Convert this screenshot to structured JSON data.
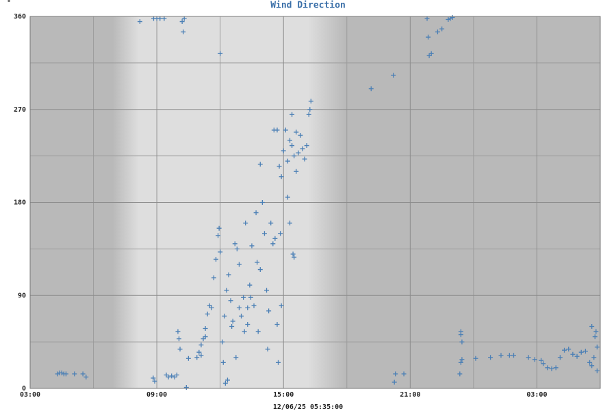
{
  "chart_data": {
    "type": "scatter",
    "title": "Wind Direction",
    "y_unit": "°",
    "x_label": "12/06/25 05:35:00",
    "color": "#4a7fb5",
    "marker": "+",
    "grid": true,
    "xlim": [
      3,
      30
    ],
    "ylim": [
      0,
      360
    ],
    "xticks": [
      {
        "value": 3,
        "label": "03:00"
      },
      {
        "value": 9,
        "label": "09:00"
      },
      {
        "value": 15,
        "label": "15:00"
      },
      {
        "value": 21,
        "label": "21:00"
      },
      {
        "value": 27,
        "label": "03:00"
      }
    ],
    "x_minor_ticks": [
      6,
      12,
      18,
      24
    ],
    "yticks": [
      0,
      90,
      180,
      270,
      360
    ],
    "y_minor_ticks": [
      45,
      135,
      225,
      315
    ],
    "series": [
      {
        "name": "Wind Direction",
        "color": "#4a7fb5",
        "x": [
          4.3,
          4.4,
          4.5,
          4.6,
          4.7,
          5.1,
          5.5,
          5.65,
          8.2,
          8.85,
          9.0,
          9.15,
          9.35,
          8.83,
          8.9,
          9.45,
          9.55,
          9.7,
          9.85,
          9.95,
          10.0,
          10.05,
          10.1,
          10.2,
          10.25,
          10.3,
          10.4,
          10.5,
          10.9,
          11.0,
          11.1,
          11.2,
          11.3,
          12.0,
          11.1,
          11.3,
          11.4,
          11.5,
          11.6,
          11.7,
          11.8,
          11.9,
          11.95,
          12.0,
          12.1,
          12.15,
          12.2,
          12.3,
          12.4,
          12.5,
          12.6,
          12.7,
          12.8,
          12.9,
          13.0,
          13.1,
          13.2,
          13.3,
          13.4,
          13.5,
          13.6,
          13.7,
          13.8,
          13.9,
          14.0,
          14.1,
          14.2,
          14.3,
          14.4,
          14.5,
          14.6,
          14.7,
          14.8,
          14.85,
          14.9,
          15.0,
          15.1,
          15.2,
          15.3,
          15.4,
          15.5,
          15.6,
          15.7,
          15.8,
          15.9,
          16.0,
          16.1,
          16.2,
          12.35,
          12.25,
          13.15,
          13.45,
          13.75,
          14.25,
          14.75,
          14.9,
          15.2,
          15.3,
          13.9,
          14.55,
          14.7,
          15.6,
          15.4,
          12.9,
          13.3,
          12.55,
          12.75,
          15.45,
          15.5,
          16.3,
          16.25,
          19.15,
          20.2,
          20.3,
          20.7,
          20.25,
          21.8,
          21.85,
          21.9,
          22.0,
          22.3,
          22.5,
          22.8,
          22.9,
          23.0,
          23.4,
          23.4,
          23.45,
          23.4,
          23.45,
          23.35,
          24.1,
          24.8,
          25.3,
          25.7,
          25.9,
          26.6,
          26.9,
          27.2,
          27.3,
          27.5,
          27.7,
          27.9,
          28.1,
          28.3,
          28.5,
          28.7,
          28.9,
          29.1,
          29.3,
          29.5,
          29.6,
          29.7,
          29.75,
          29.8,
          29.85,
          29.85,
          29.6
        ],
        "values": [
          14,
          15,
          15,
          14,
          14,
          14,
          14,
          11,
          355,
          358,
          358,
          358,
          358,
          10,
          7,
          13,
          11,
          12,
          11,
          13,
          55,
          48,
          38,
          355,
          345,
          358,
          1,
          29,
          30,
          35,
          32,
          48,
          50,
          324,
          42,
          58,
          72,
          80,
          78,
          107,
          125,
          148,
          155,
          132,
          45,
          25,
          70,
          95,
          110,
          85,
          65,
          140,
          135,
          120,
          70,
          88,
          160,
          62,
          100,
          138,
          80,
          170,
          55,
          115,
          180,
          150,
          95,
          75,
          160,
          140,
          145,
          62,
          215,
          150,
          205,
          230,
          250,
          220,
          240,
          235,
          225,
          210,
          228,
          245,
          232,
          222,
          235,
          265,
          8,
          5,
          55,
          88,
          122,
          38,
          25,
          80,
          185,
          160,
          217,
          250,
          250,
          248,
          265,
          78,
          78,
          60,
          30,
          130,
          127,
          278,
          270,
          290,
          303,
          14,
          14,
          6,
          358,
          340,
          322,
          324,
          345,
          348,
          357,
          358,
          359,
          55,
          52,
          45,
          25,
          28,
          14,
          29,
          30,
          32,
          32,
          32,
          30,
          28,
          27,
          24,
          20,
          19,
          20,
          30,
          37,
          38,
          33,
          31,
          35,
          36,
          25,
          22,
          30,
          50,
          55,
          17,
          40,
          60
        ]
      }
    ]
  }
}
